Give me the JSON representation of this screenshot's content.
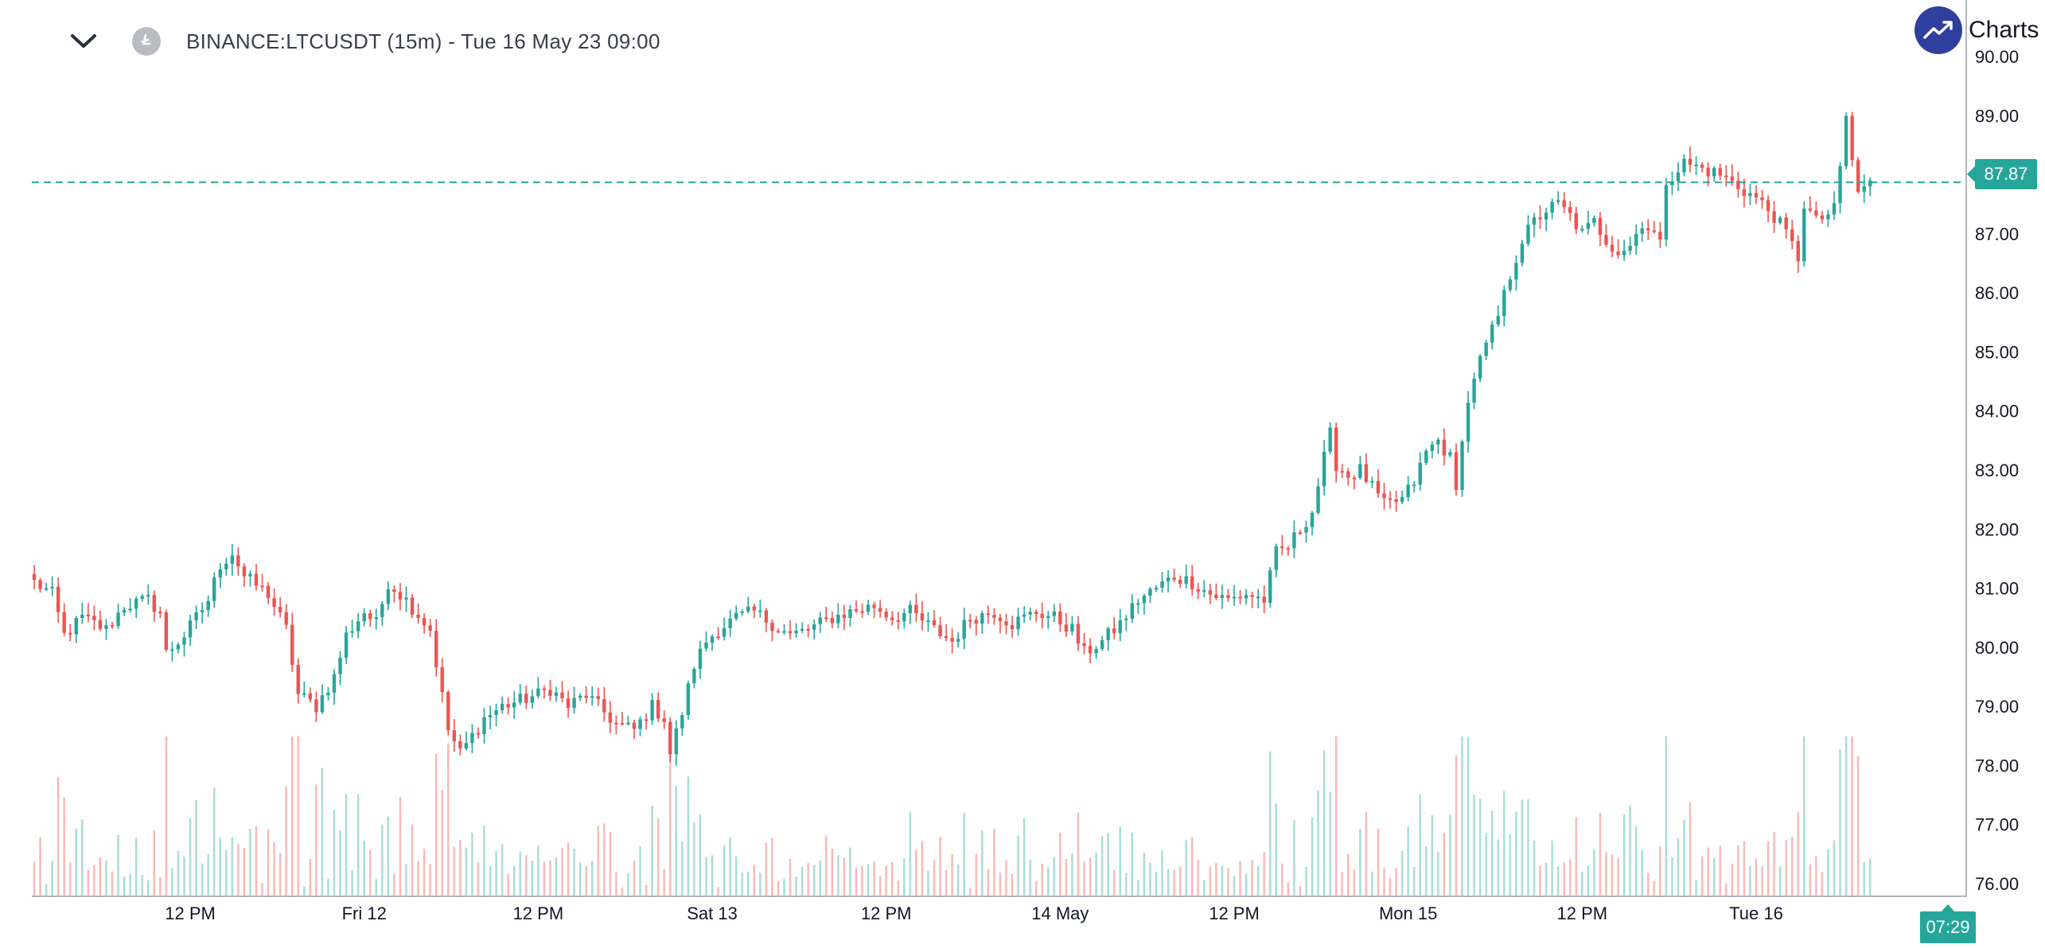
{
  "header": {
    "symbol": "BINANCE:LTCUSDT (15m) - Tue 16 May 23 09:00"
  },
  "brand": {
    "text": "Charts p"
  },
  "last_price_badge": "87.87",
  "countdown_badge": "07:29",
  "colors": {
    "up": "#26a69a",
    "down": "#ef5350",
    "up_volume": "#a8dcd6",
    "down_volume": "#f8b9b7",
    "axis_text": "#131722",
    "brand": "#2f3f9e"
  },
  "chart_data": {
    "type": "candlestick",
    "title": "BINANCE:LTCUSDT (15m)",
    "ylim": [
      75.9,
      90.3
    ],
    "y_ticks": [
      "90.00",
      "89.00",
      "88.00",
      "87.00",
      "86.00",
      "85.00",
      "84.00",
      "83.00",
      "82.00",
      "81.00",
      "80.00",
      "79.00",
      "78.00",
      "77.00",
      "76.00"
    ],
    "y_tick_values": [
      90,
      89,
      88,
      87,
      86,
      85,
      84,
      83,
      82,
      81,
      80,
      79,
      78,
      77,
      76
    ],
    "x_ticks": [
      "12 PM",
      "Fri 12",
      "12 PM",
      "Sat 13",
      "12 PM",
      "14 May",
      "12 PM",
      "Mon 15",
      "12 PM",
      "Tue 16"
    ],
    "x_tick_bar_index": [
      26,
      55,
      84,
      113,
      142,
      171,
      200,
      229,
      258,
      287
    ],
    "last_price": 87.87,
    "close_path_anchors": [
      [
        0,
        81.1
      ],
      [
        3,
        80.9
      ],
      [
        5,
        80.2
      ],
      [
        8,
        80.5
      ],
      [
        12,
        80.3
      ],
      [
        15,
        80.7
      ],
      [
        19,
        80.8
      ],
      [
        21,
        80.6
      ],
      [
        22,
        79.9
      ],
      [
        25,
        80.2
      ],
      [
        29,
        80.8
      ],
      [
        31,
        81.4
      ],
      [
        33,
        81.6
      ],
      [
        35,
        81.2
      ],
      [
        39,
        80.9
      ],
      [
        42,
        80.3
      ],
      [
        44,
        79.2
      ],
      [
        47,
        79.0
      ],
      [
        50,
        79.5
      ],
      [
        52,
        80.2
      ],
      [
        55,
        80.6
      ],
      [
        57,
        80.4
      ],
      [
        59,
        81.1
      ],
      [
        62,
        80.8
      ],
      [
        66,
        80.3
      ],
      [
        69,
        78.6
      ],
      [
        71,
        78.2
      ],
      [
        73,
        78.5
      ],
      [
        75,
        78.8
      ],
      [
        78,
        79.0
      ],
      [
        81,
        79.1
      ],
      [
        84,
        79.2
      ],
      [
        86,
        79.3
      ],
      [
        89,
        79.0
      ],
      [
        92,
        79.2
      ],
      [
        94,
        79.0
      ],
      [
        97,
        78.7
      ],
      [
        100,
        78.6
      ],
      [
        103,
        79.0
      ],
      [
        105,
        78.8
      ],
      [
        106,
        78.2
      ],
      [
        108,
        78.9
      ],
      [
        110,
        79.7
      ],
      [
        112,
        80.1
      ],
      [
        114,
        80.3
      ],
      [
        117,
        80.5
      ],
      [
        120,
        80.6
      ],
      [
        123,
        80.4
      ],
      [
        126,
        80.2
      ],
      [
        129,
        80.3
      ],
      [
        133,
        80.5
      ],
      [
        136,
        80.6
      ],
      [
        140,
        80.7
      ],
      [
        143,
        80.5
      ],
      [
        146,
        80.6
      ],
      [
        150,
        80.3
      ],
      [
        153,
        80.1
      ],
      [
        156,
        80.5
      ],
      [
        160,
        80.6
      ],
      [
        163,
        80.4
      ],
      [
        167,
        80.6
      ],
      [
        170,
        80.5
      ],
      [
        173,
        80.3
      ],
      [
        175,
        79.9
      ],
      [
        178,
        80.1
      ],
      [
        181,
        80.4
      ],
      [
        184,
        80.8
      ],
      [
        187,
        81.0
      ],
      [
        190,
        81.2
      ],
      [
        193,
        81.1
      ],
      [
        196,
        80.9
      ],
      [
        199,
        80.8
      ],
      [
        202,
        80.9
      ],
      [
        205,
        80.8
      ],
      [
        207,
        81.6
      ],
      [
        209,
        81.7
      ],
      [
        211,
        82.0
      ],
      [
        213,
        82.3
      ],
      [
        215,
        83.2
      ],
      [
        216,
        83.6
      ],
      [
        217,
        83.1
      ],
      [
        219,
        82.9
      ],
      [
        221,
        83.0
      ],
      [
        223,
        82.7
      ],
      [
        225,
        82.4
      ],
      [
        228,
        82.5
      ],
      [
        230,
        82.8
      ],
      [
        232,
        83.3
      ],
      [
        234,
        83.5
      ],
      [
        236,
        83.2
      ],
      [
        237,
        82.6
      ],
      [
        238,
        83.6
      ],
      [
        240,
        84.6
      ],
      [
        242,
        85.1
      ],
      [
        244,
        85.6
      ],
      [
        246,
        86.3
      ],
      [
        248,
        86.9
      ],
      [
        250,
        87.2
      ],
      [
        252,
        87.4
      ],
      [
        254,
        87.5
      ],
      [
        256,
        87.3
      ],
      [
        258,
        87.0
      ],
      [
        260,
        87.2
      ],
      [
        262,
        86.9
      ],
      [
        264,
        86.7
      ],
      [
        266,
        86.8
      ],
      [
        268,
        87.2
      ],
      [
        270,
        87.0
      ],
      [
        271,
        86.8
      ],
      [
        272,
        87.9
      ],
      [
        275,
        88.2
      ],
      [
        278,
        88.1
      ],
      [
        281,
        88.0
      ],
      [
        284,
        87.8
      ],
      [
        287,
        87.6
      ],
      [
        290,
        87.3
      ],
      [
        292,
        87.0
      ],
      [
        294,
        86.6
      ],
      [
        295,
        87.5
      ],
      [
        297,
        87.2
      ],
      [
        300,
        87.4
      ],
      [
        301,
        88.1
      ],
      [
        302,
        89.0
      ],
      [
        303,
        88.2
      ],
      [
        304,
        87.7
      ],
      [
        306,
        87.9
      ]
    ],
    "n_bars": 307,
    "volume_panel": true
  }
}
